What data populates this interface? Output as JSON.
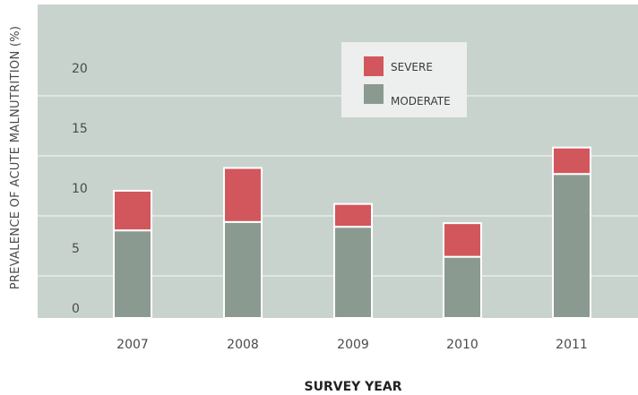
{
  "chart_data": {
    "type": "bar",
    "stacked": true,
    "categories": [
      "2007",
      "2008",
      "2009",
      "2010",
      "2011"
    ],
    "series": [
      {
        "name": "MODERATE",
        "values": [
          7.3,
          8.0,
          7.6,
          5.1,
          12.0
        ],
        "color": "#8b9a90"
      },
      {
        "name": "SEVERE",
        "values": [
          3.3,
          4.5,
          1.9,
          2.8,
          2.2
        ],
        "color": "#d1575c"
      }
    ],
    "legend_order": [
      1,
      0
    ],
    "title": "",
    "xlabel": "SURVEY YEAR",
    "ylabel": "PREVALENCE OF ACUTE MALNUTRITION (%)",
    "ylim": [
      0,
      25
    ],
    "yticks": [
      0,
      5,
      10,
      15,
      20
    ],
    "grid": true,
    "legend_position": "top-center",
    "plot_background": "#c9d3ce"
  }
}
